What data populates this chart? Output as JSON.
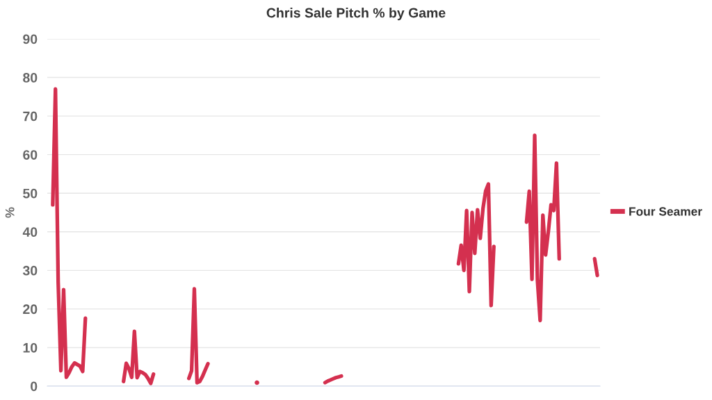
{
  "chart_data": {
    "type": "line",
    "title": "Chris Sale Pitch % by Game",
    "ylabel": "%",
    "categories": [
      null,
      null,
      null,
      null,
      null,
      null,
      null,
      null,
      null,
      null,
      null,
      null,
      null,
      null,
      null,
      null,
      null,
      null,
      null,
      null,
      null,
      null,
      null,
      null,
      null,
      null,
      null,
      null,
      null,
      null,
      null,
      null,
      null,
      null,
      null,
      null,
      null,
      null,
      null,
      null,
      null,
      null,
      null,
      null,
      null,
      null,
      null,
      null,
      null,
      null,
      null,
      null,
      null,
      null,
      null,
      null,
      null,
      null,
      null,
      null,
      null,
      null,
      null,
      null,
      null,
      null,
      null,
      null,
      null,
      null,
      null,
      null,
      null,
      null,
      null,
      null,
      null,
      null,
      null,
      null,
      null,
      null,
      null,
      null,
      null,
      null,
      null,
      null,
      null,
      null,
      null,
      null,
      null,
      null,
      null,
      null,
      null,
      null,
      null,
      null,
      null,
      null,
      null,
      null,
      null,
      null,
      null,
      null,
      null,
      null,
      null,
      null,
      null,
      null,
      null,
      null,
      null,
      null,
      null,
      null,
      null,
      null,
      null,
      null,
      null,
      null,
      null,
      null,
      null,
      null,
      null,
      null,
      null,
      null,
      null,
      null,
      null,
      null,
      null,
      null,
      null,
      null,
      null,
      null,
      null,
      null,
      null,
      null,
      null,
      null,
      null,
      null,
      null,
      null,
      null,
      null,
      null,
      null,
      null,
      null,
      null,
      null,
      null,
      null,
      null,
      null,
      null,
      null,
      null,
      null,
      null,
      null,
      null,
      null,
      null,
      null,
      null,
      null,
      null,
      null,
      null,
      null,
      null,
      null,
      null,
      null,
      null,
      null,
      null,
      null,
      null,
      null,
      null,
      null,
      null,
      null,
      null,
      null,
      null,
      null,
      null,
      null,
      null,
      null
    ],
    "series": [
      {
        "name": "Four Seamer",
        "color": "#d4304f",
        "values": [
          null,
          null,
          47,
          77,
          27,
          4,
          25,
          2.3,
          3.5,
          5,
          6,
          5.6,
          5.2,
          3.8,
          17.6,
          null,
          null,
          null,
          null,
          null,
          null,
          null,
          null,
          null,
          null,
          null,
          null,
          null,
          1.2,
          5.9,
          4.5,
          2.3,
          14.2,
          2.2,
          3.8,
          3.5,
          3.0,
          2.0,
          0.7,
          3.1,
          null,
          null,
          null,
          null,
          null,
          null,
          null,
          null,
          null,
          null,
          null,
          null,
          2.0,
          4,
          25.2,
          0.9,
          1.2,
          2.5,
          4.2,
          5.8,
          null,
          null,
          null,
          null,
          null,
          null,
          null,
          null,
          null,
          null,
          null,
          null,
          null,
          null,
          null,
          null,
          null,
          0.9,
          null,
          null,
          null,
          null,
          null,
          null,
          null,
          null,
          null,
          null,
          null,
          null,
          null,
          null,
          null,
          null,
          null,
          null,
          null,
          null,
          null,
          null,
          null,
          null,
          0.9,
          1.3,
          1.6,
          1.9,
          2.2,
          2.4,
          2.6,
          null,
          null,
          null,
          null,
          null,
          null,
          null,
          null,
          null,
          null,
          null,
          null,
          null,
          null,
          null,
          null,
          null,
          null,
          null,
          null,
          null,
          null,
          null,
          null,
          null,
          null,
          null,
          null,
          null,
          null,
          null,
          null,
          null,
          null,
          null,
          null,
          null,
          null,
          null,
          null,
          null,
          null,
          31.7,
          36.5,
          30,
          45.5,
          24.5,
          45,
          34.4,
          45.7,
          38.3,
          46,
          50.6,
          52.4,
          20.9,
          36.2,
          null,
          null,
          null,
          null,
          null,
          null,
          null,
          null,
          null,
          null,
          null,
          42.5,
          50.5,
          27.7,
          65,
          27.5,
          17,
          44.3,
          34,
          40,
          47,
          45.5,
          57.8,
          33,
          null,
          null,
          null,
          null,
          null,
          null,
          null,
          null,
          null,
          null,
          null,
          null,
          33,
          28.7,
          null
        ]
      }
    ],
    "ylim": [
      0,
      90
    ],
    "yticks": [
      0,
      10,
      20,
      30,
      40,
      50,
      60,
      70,
      80,
      90
    ],
    "grid": "y",
    "legend": "right"
  }
}
